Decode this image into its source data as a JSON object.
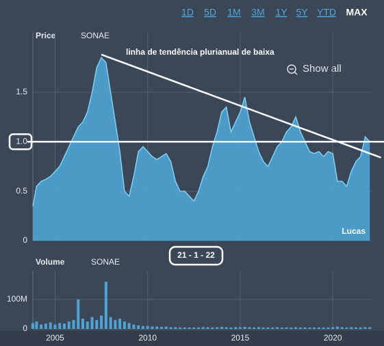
{
  "range_buttons": [
    "1D",
    "5D",
    "1M",
    "3M",
    "1Y",
    "5Y",
    "YTD",
    "MAX"
  ],
  "selected_range": 7,
  "chart_data": [
    {
      "type": "area",
      "label": "Price",
      "subtitle": "SONAE",
      "color": "#4ea3d4",
      "line_color": "#7fd0f5",
      "annotations": {
        "trend_title": "linha de tendência plurianual de baixa",
        "show_all": "Show all",
        "author": "Lucas",
        "date": "21 - 1 - 22"
      },
      "trendline": {
        "x": [
          2007.5,
          2022.6
        ],
        "y": [
          1.88,
          0.84
        ]
      },
      "hline": 1.0,
      "xlim": [
        2003.8,
        2022.1
      ],
      "ylim": [
        0,
        2.1
      ],
      "xticks": [
        2005,
        2010,
        2015,
        2020
      ],
      "yticks": [
        0,
        0.5,
        {
          "value": 1,
          "label": "1.0"
        },
        1.5
      ],
      "grid": true,
      "x": [
        2003.8,
        2004.0,
        2004.25,
        2004.5,
        2004.75,
        2005.0,
        2005.25,
        2005.5,
        2005.75,
        2006.0,
        2006.25,
        2006.5,
        2006.75,
        2007.0,
        2007.25,
        2007.5,
        2007.75,
        2008.0,
        2008.25,
        2008.5,
        2008.75,
        2009.0,
        2009.25,
        2009.5,
        2009.75,
        2010.0,
        2010.25,
        2010.5,
        2010.75,
        2011.0,
        2011.25,
        2011.5,
        2011.75,
        2012.0,
        2012.25,
        2012.5,
        2012.75,
        2013.0,
        2013.25,
        2013.5,
        2013.75,
        2014.0,
        2014.25,
        2014.5,
        2014.75,
        2015.0,
        2015.25,
        2015.5,
        2015.75,
        2016.0,
        2016.25,
        2016.5,
        2016.75,
        2017.0,
        2017.25,
        2017.5,
        2017.75,
        2018.0,
        2018.25,
        2018.5,
        2018.75,
        2019.0,
        2019.25,
        2019.5,
        2019.75,
        2020.0,
        2020.25,
        2020.5,
        2020.75,
        2021.0,
        2021.25,
        2021.5,
        2021.75,
        2022.0
      ],
      "series": [
        {
          "name": "SONAE",
          "values": [
            0.35,
            0.55,
            0.6,
            0.62,
            0.65,
            0.7,
            0.75,
            0.85,
            0.95,
            1.05,
            1.15,
            1.2,
            1.3,
            1.5,
            1.75,
            1.85,
            1.8,
            1.5,
            1.2,
            0.9,
            0.5,
            0.45,
            0.65,
            0.9,
            0.95,
            0.9,
            0.85,
            0.82,
            0.85,
            0.88,
            0.8,
            0.6,
            0.5,
            0.5,
            0.45,
            0.4,
            0.5,
            0.65,
            0.75,
            0.95,
            1.1,
            1.3,
            1.35,
            1.1,
            1.2,
            1.3,
            1.45,
            1.2,
            1.05,
            0.9,
            0.8,
            0.75,
            0.85,
            0.95,
            1.0,
            1.1,
            1.15,
            1.25,
            1.1,
            1.0,
            0.9,
            0.88,
            0.9,
            0.85,
            0.9,
            0.88,
            0.6,
            0.6,
            0.55,
            0.7,
            0.8,
            0.85,
            1.05,
            1.0
          ]
        }
      ]
    },
    {
      "type": "bar",
      "label": "Volume",
      "subtitle": "SONAE",
      "color": "#4ea3d4",
      "xlim": [
        2003.8,
        2022.1
      ],
      "ylim": [
        0,
        195000000
      ],
      "xticks": [
        2005,
        2010,
        2015,
        2020
      ],
      "yticks": [
        0,
        {
          "value": 100000000,
          "label": "100M"
        }
      ],
      "grid": true,
      "x": [
        2003.8,
        2004.0,
        2004.25,
        2004.5,
        2004.75,
        2005.0,
        2005.25,
        2005.5,
        2005.75,
        2006.0,
        2006.25,
        2006.5,
        2006.75,
        2007.0,
        2007.25,
        2007.5,
        2007.75,
        2008.0,
        2008.25,
        2008.5,
        2008.75,
        2009.0,
        2009.25,
        2009.5,
        2009.75,
        2010.0,
        2010.25,
        2010.5,
        2010.75,
        2011.0,
        2011.25,
        2011.5,
        2011.75,
        2012.0,
        2012.25,
        2012.5,
        2012.75,
        2013.0,
        2013.25,
        2013.5,
        2013.75,
        2014.0,
        2014.25,
        2014.5,
        2014.75,
        2015.0,
        2015.25,
        2015.5,
        2015.75,
        2016.0,
        2016.25,
        2016.5,
        2016.75,
        2017.0,
        2017.25,
        2017.5,
        2017.75,
        2018.0,
        2018.25,
        2018.5,
        2018.75,
        2019.0,
        2019.25,
        2019.5,
        2019.75,
        2020.0,
        2020.25,
        2020.5,
        2020.75,
        2021.0,
        2021.25,
        2021.5,
        2021.75,
        2022.0
      ],
      "series": [
        {
          "name": "SONAE",
          "values": [
            20000000,
            25000000,
            15000000,
            18000000,
            22000000,
            15000000,
            20000000,
            18000000,
            25000000,
            30000000,
            100000000,
            35000000,
            25000000,
            40000000,
            30000000,
            45000000,
            160000000,
            40000000,
            30000000,
            35000000,
            25000000,
            20000000,
            15000000,
            12000000,
            10000000,
            10000000,
            8000000,
            8000000,
            7000000,
            8000000,
            6000000,
            6000000,
            5000000,
            5000000,
            5000000,
            5000000,
            5000000,
            6000000,
            6000000,
            5000000,
            6000000,
            7000000,
            6000000,
            5000000,
            6000000,
            6000000,
            7000000,
            6000000,
            5000000,
            6000000,
            5000000,
            5000000,
            5000000,
            6000000,
            5000000,
            5000000,
            5000000,
            6000000,
            5000000,
            5000000,
            5000000,
            5000000,
            5000000,
            5000000,
            5000000,
            6000000,
            8000000,
            6000000,
            5000000,
            6000000,
            5000000,
            5000000,
            6000000,
            6000000
          ]
        }
      ]
    }
  ]
}
